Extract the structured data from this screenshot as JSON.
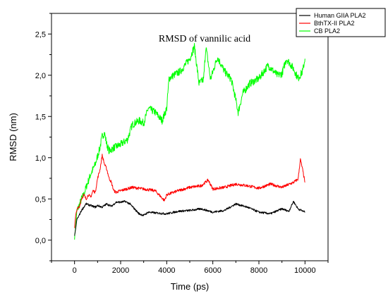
{
  "chart_data": {
    "type": "line",
    "title": "RMSD of vannilic acid",
    "xlabel": "Time (ps)",
    "ylabel": "RMSD (nm)",
    "xlim": [
      -1000,
      11000
    ],
    "ylim": [
      -0.25,
      2.75
    ],
    "xticks": [
      0,
      2000,
      4000,
      6000,
      8000,
      10000
    ],
    "xtick_labels": [
      "0",
      "2000",
      "4000",
      "6000",
      "8000",
      "10000"
    ],
    "yticks": [
      0.0,
      0.5,
      1.0,
      1.5,
      2.0,
      2.5
    ],
    "ytick_labels": [
      "0,0",
      "0,5",
      "1,0",
      "1,5",
      "2,0",
      "2,5"
    ],
    "grid": false,
    "legend_position": "top-right",
    "series": [
      {
        "name": "Human GIIA PLA2",
        "color": "#000000",
        "points": [
          [
            0,
            0.05
          ],
          [
            50,
            0.14
          ],
          [
            100,
            0.25
          ],
          [
            200,
            0.3
          ],
          [
            300,
            0.36
          ],
          [
            400,
            0.4
          ],
          [
            500,
            0.44
          ],
          [
            700,
            0.42
          ],
          [
            900,
            0.4
          ],
          [
            1000,
            0.42
          ],
          [
            1200,
            0.4
          ],
          [
            1400,
            0.44
          ],
          [
            1600,
            0.41
          ],
          [
            1800,
            0.46
          ],
          [
            2000,
            0.46
          ],
          [
            2200,
            0.47
          ],
          [
            2400,
            0.44
          ],
          [
            2600,
            0.38
          ],
          [
            2800,
            0.32
          ],
          [
            3000,
            0.3
          ],
          [
            3200,
            0.34
          ],
          [
            3500,
            0.33
          ],
          [
            4000,
            0.32
          ],
          [
            4500,
            0.35
          ],
          [
            5000,
            0.36
          ],
          [
            5500,
            0.38
          ],
          [
            6000,
            0.34
          ],
          [
            6500,
            0.36
          ],
          [
            7000,
            0.44
          ],
          [
            7500,
            0.4
          ],
          [
            8000,
            0.34
          ],
          [
            8500,
            0.32
          ],
          [
            9000,
            0.38
          ],
          [
            9300,
            0.35
          ],
          [
            9500,
            0.47
          ],
          [
            9700,
            0.38
          ],
          [
            10000,
            0.34
          ]
        ]
      },
      {
        "name": "BthTX-II PLA2",
        "color": "#ff0000",
        "points": [
          [
            0,
            0.15
          ],
          [
            50,
            0.3
          ],
          [
            100,
            0.37
          ],
          [
            200,
            0.4
          ],
          [
            300,
            0.5
          ],
          [
            400,
            0.55
          ],
          [
            500,
            0.5
          ],
          [
            600,
            0.55
          ],
          [
            700,
            0.52
          ],
          [
            800,
            0.6
          ],
          [
            900,
            0.58
          ],
          [
            1000,
            0.75
          ],
          [
            1100,
            0.85
          ],
          [
            1200,
            1.03
          ],
          [
            1300,
            0.92
          ],
          [
            1400,
            0.86
          ],
          [
            1500,
            0.75
          ],
          [
            1600,
            0.7
          ],
          [
            1700,
            0.6
          ],
          [
            1800,
            0.58
          ],
          [
            2000,
            0.6
          ],
          [
            2500,
            0.64
          ],
          [
            3000,
            0.62
          ],
          [
            3500,
            0.6
          ],
          [
            3900,
            0.48
          ],
          [
            4000,
            0.55
          ],
          [
            4500,
            0.6
          ],
          [
            5000,
            0.64
          ],
          [
            5500,
            0.66
          ],
          [
            5800,
            0.73
          ],
          [
            6000,
            0.62
          ],
          [
            6500,
            0.64
          ],
          [
            7000,
            0.68
          ],
          [
            7500,
            0.66
          ],
          [
            8000,
            0.63
          ],
          [
            8500,
            0.68
          ],
          [
            9000,
            0.64
          ],
          [
            9500,
            0.7
          ],
          [
            9700,
            0.74
          ],
          [
            9800,
            0.98
          ],
          [
            9900,
            0.85
          ],
          [
            10000,
            0.7
          ]
        ]
      },
      {
        "name": "CB PLA2",
        "color": "#00ff00",
        "points": [
          [
            0,
            0.02
          ],
          [
            50,
            0.18
          ],
          [
            100,
            0.35
          ],
          [
            200,
            0.42
          ],
          [
            300,
            0.5
          ],
          [
            400,
            0.55
          ],
          [
            500,
            0.64
          ],
          [
            700,
            0.8
          ],
          [
            900,
            0.92
          ],
          [
            1100,
            1.12
          ],
          [
            1200,
            1.26
          ],
          [
            1300,
            1.3
          ],
          [
            1400,
            1.16
          ],
          [
            1500,
            1.08
          ],
          [
            1700,
            1.12
          ],
          [
            2000,
            1.16
          ],
          [
            2300,
            1.22
          ],
          [
            2500,
            1.4
          ],
          [
            2800,
            1.45
          ],
          [
            3000,
            1.42
          ],
          [
            3200,
            1.6
          ],
          [
            3500,
            1.55
          ],
          [
            3800,
            1.45
          ],
          [
            4000,
            1.6
          ],
          [
            4100,
            1.96
          ],
          [
            4300,
            2.0
          ],
          [
            4600,
            2.05
          ],
          [
            5000,
            2.2
          ],
          [
            5200,
            2.35
          ],
          [
            5400,
            1.9
          ],
          [
            5600,
            1.95
          ],
          [
            5700,
            2.35
          ],
          [
            5900,
            1.95
          ],
          [
            6200,
            2.22
          ],
          [
            6500,
            2.05
          ],
          [
            6800,
            1.95
          ],
          [
            7000,
            1.7
          ],
          [
            7100,
            1.55
          ],
          [
            7300,
            1.78
          ],
          [
            7600,
            1.9
          ],
          [
            8000,
            1.96
          ],
          [
            8400,
            2.12
          ],
          [
            8800,
            2.0
          ],
          [
            9000,
            2.02
          ],
          [
            9200,
            2.2
          ],
          [
            9500,
            2.08
          ],
          [
            9700,
            1.96
          ],
          [
            9900,
            2.05
          ],
          [
            10000,
            2.2
          ]
        ]
      }
    ]
  }
}
